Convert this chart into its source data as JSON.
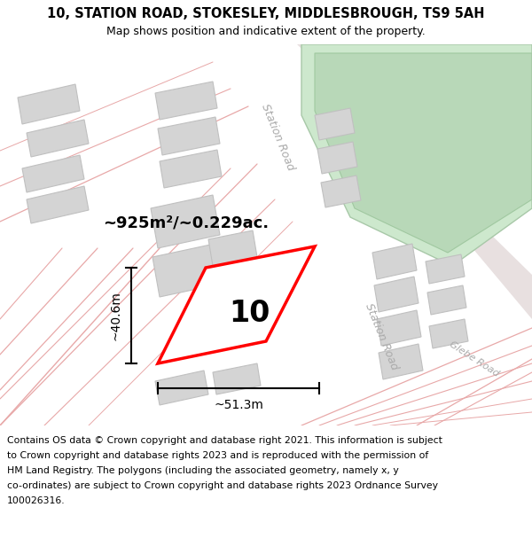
{
  "title_line1": "10, STATION ROAD, STOKESLEY, MIDDLESBROUGH, TS9 5AH",
  "title_line2": "Map shows position and indicative extent of the property.",
  "footer_lines": [
    "Contains OS data © Crown copyright and database right 2021. This information is subject",
    "to Crown copyright and database rights 2023 and is reproduced with the permission of",
    "HM Land Registry. The polygons (including the associated geometry, namely x, y",
    "co-ordinates) are subject to Crown copyright and database rights 2023 Ordnance Survey",
    "100026316."
  ],
  "area_label": "~925m²/~0.229ac.",
  "plot_number": "10",
  "width_label": "~51.3m",
  "height_label": "~40.6m",
  "road_label_upper": "Station Road",
  "road_label_lower": "Station Road",
  "glebe_road_label": "Glebe Road",
  "map_bg": "#f2efef",
  "plot_border_color": "#ff0000",
  "building_color": "#d4d4d4",
  "building_edge": "#c0c0c0",
  "green_color": "#cde8cd",
  "green_inner": "#b8d8b8",
  "road_line_color": "#e8a8a8",
  "dim_color": "#000000",
  "text_color": "#000000",
  "road_text_color": "#aaaaaa"
}
